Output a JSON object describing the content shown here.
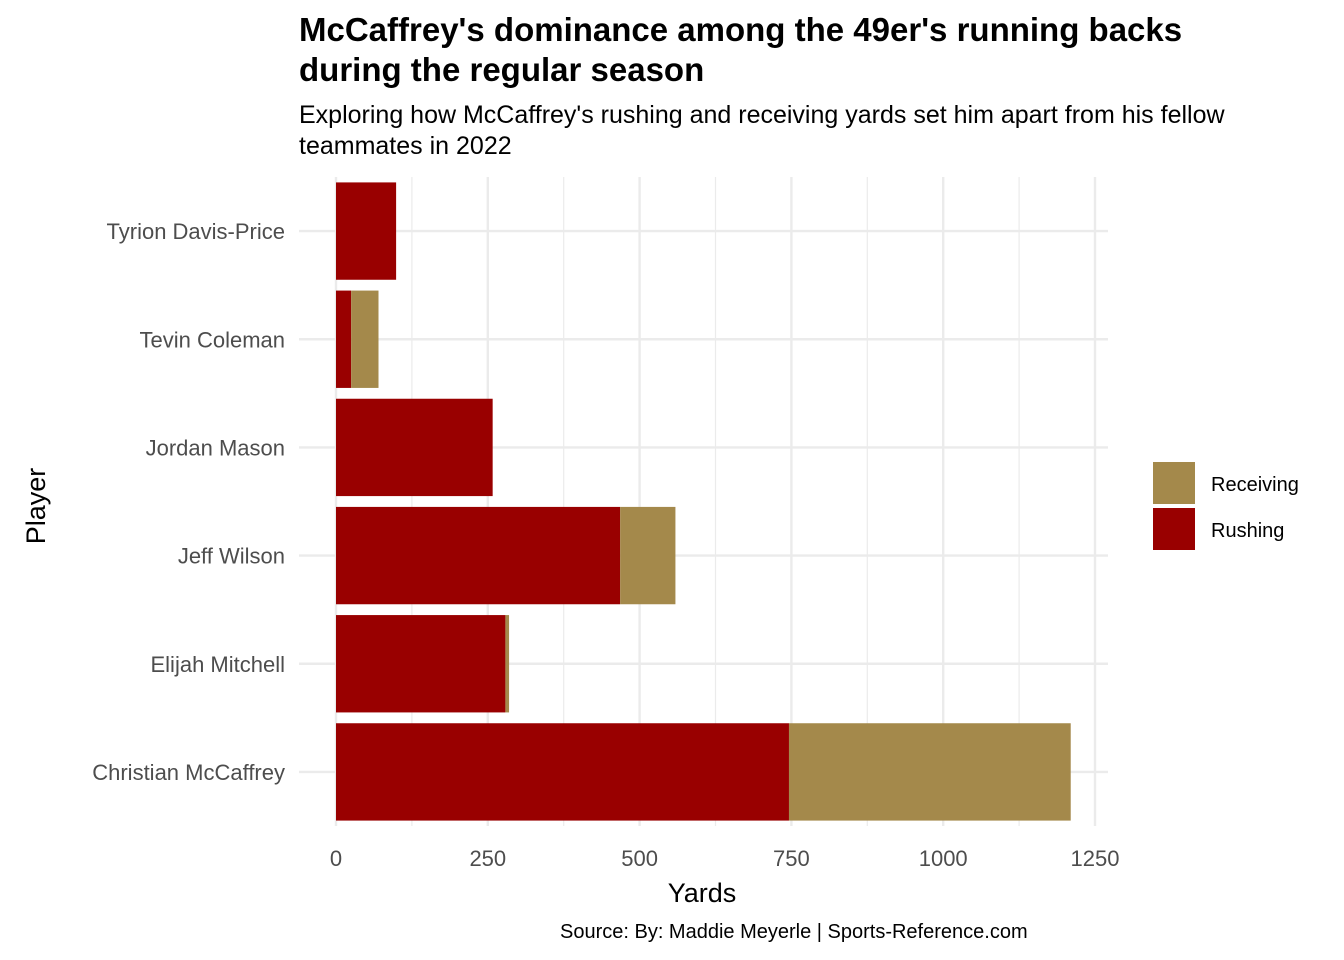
{
  "chart_data": {
    "type": "bar",
    "orientation": "horizontal",
    "stacked": true,
    "title": "McCaffrey's dominance among the 49er's running backs during the regular season",
    "subtitle": "Exploring how McCaffrey's rushing and receiving yards set him apart from his fellow teammates in 2022",
    "xlabel": "Yards",
    "ylabel": "Player",
    "caption": "Source: By: Maddie Meyerle | Sports-Reference.com",
    "categories": [
      "Christian McCaffrey",
      "Elijah Mitchell",
      "Jeff Wilson",
      "Jordan Mason",
      "Tevin Coleman",
      "Tyrion Davis-Price"
    ],
    "series": [
      {
        "name": "Rushing",
        "color": "#990000",
        "values": [
          746,
          279,
          468,
          258,
          25,
          99
        ]
      },
      {
        "name": "Receiving",
        "color": "#A4894B",
        "values": [
          464,
          6,
          91,
          0,
          45,
          0
        ]
      }
    ],
    "x_ticks": [
      "0",
      "250",
      "500",
      "750",
      "1000",
      "1250"
    ],
    "xlim": [
      0,
      1250
    ],
    "legend": {
      "position": "right",
      "entries": [
        {
          "label": "Receiving",
          "color": "#A4894B"
        },
        {
          "label": "Rushing",
          "color": "#990000"
        }
      ]
    },
    "grid": true
  }
}
